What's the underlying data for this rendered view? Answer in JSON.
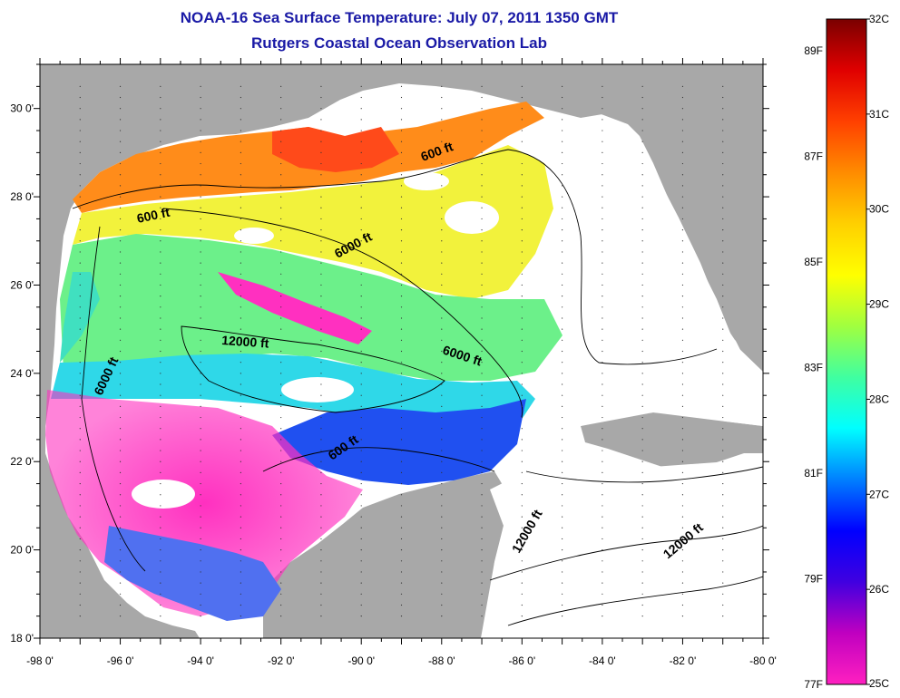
{
  "header": {
    "title": "NOAA-16 Sea Surface Temperature:  July 07, 2011 1350 GMT",
    "subtitle": "Rutgers Coastal Ocean Observation Lab"
  },
  "axes": {
    "lon_ticks": [
      "-98 0'",
      "-96 0'",
      "-94 0'",
      "-92 0'",
      "-90 0'",
      "-88 0'",
      "-86 0'",
      "-84 0'",
      "-82 0'",
      "-80 0'"
    ],
    "lat_ticks": [
      "30 0'",
      "28 0'",
      "26 0'",
      "24 0'",
      "22 0'",
      "20 0'",
      "18 0'"
    ],
    "lon_range": [
      -98,
      -80
    ],
    "lat_range": [
      18,
      31
    ]
  },
  "contour_labels": [
    {
      "text": "600 ft",
      "rotate": -12
    },
    {
      "text": "600 ft",
      "rotate": -20
    },
    {
      "text": "6000 ft",
      "rotate": -28
    },
    {
      "text": "12000 ft",
      "rotate": 4
    },
    {
      "text": "6000 ft",
      "rotate": 18
    },
    {
      "text": "6000 ft",
      "rotate": -65
    },
    {
      "text": "600 ft",
      "rotate": -35
    },
    {
      "text": "12000 ft",
      "rotate": -60
    },
    {
      "text": "12000 ft",
      "rotate": -40
    }
  ],
  "colorbar": {
    "celsius_labels": [
      "32C",
      "31C",
      "30C",
      "29C",
      "28C",
      "27C",
      "26C",
      "25C"
    ],
    "fahrenheit_labels": [
      "89F",
      "87F",
      "85F",
      "83F",
      "81F",
      "79F",
      "77F"
    ],
    "celsius_values": [
      32,
      31,
      30,
      29,
      28,
      27,
      26,
      25
    ],
    "fahrenheit_values": [
      89,
      87,
      85,
      83,
      81,
      79,
      77
    ],
    "range_c": [
      25,
      32
    ],
    "gradient_colors": [
      "#7a0000",
      "#e00000",
      "#ff4000",
      "#ff8c00",
      "#ffd000",
      "#ffff00",
      "#a0ff40",
      "#40ffa0",
      "#00ffff",
      "#0080ff",
      "#0000ff",
      "#4000e0",
      "#c000c0",
      "#ff20c0"
    ]
  },
  "colors": {
    "land": "#a8a8a8",
    "title": "#1a1aa6"
  }
}
